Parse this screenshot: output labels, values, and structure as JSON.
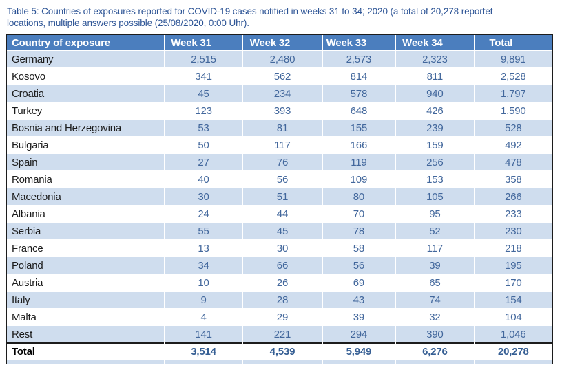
{
  "caption": {
    "line1": "Table 5: Countries of exposures reported for COVID-19 cases notified in weeks 31 to 34; 2020 (a total of 20,278 reportet",
    "line2": "locations, multiple answers possible (25/08/2020, 0:00 Uhr)."
  },
  "table": {
    "columns": [
      "Country of exposure",
      "Week 31",
      "Week 32",
      "Week 33",
      "Week 34",
      "Total"
    ],
    "rows": [
      [
        "Germany",
        "2,515",
        "2,480",
        "2,573",
        "2,323",
        "9,891"
      ],
      [
        "Kosovo",
        "341",
        "562",
        "814",
        "811",
        "2,528"
      ],
      [
        "Croatia",
        "45",
        "234",
        "578",
        "940",
        "1,797"
      ],
      [
        "Turkey",
        "123",
        "393",
        "648",
        "426",
        "1,590"
      ],
      [
        "Bosnia and Herzegovina",
        "53",
        "81",
        "155",
        "239",
        "528"
      ],
      [
        "Bulgaria",
        "50",
        "117",
        "166",
        "159",
        "492"
      ],
      [
        "Spain",
        "27",
        "76",
        "119",
        "256",
        "478"
      ],
      [
        "Romania",
        "40",
        "56",
        "109",
        "153",
        "358"
      ],
      [
        "Macedonia",
        "30",
        "51",
        "80",
        "105",
        "266"
      ],
      [
        "Albania",
        "24",
        "44",
        "70",
        "95",
        "233"
      ],
      [
        "Serbia",
        "55",
        "45",
        "78",
        "52",
        "230"
      ],
      [
        "France",
        "13",
        "30",
        "58",
        "117",
        "218"
      ],
      [
        "Poland",
        "34",
        "66",
        "56",
        "39",
        "195"
      ],
      [
        "Austria",
        "10",
        "26",
        "69",
        "65",
        "170"
      ],
      [
        "Italy",
        "9",
        "28",
        "43",
        "74",
        "154"
      ],
      [
        "Malta",
        "4",
        "29",
        "39",
        "32",
        "104"
      ],
      [
        "Rest",
        "141",
        "221",
        "294",
        "390",
        "1,046"
      ]
    ],
    "total": [
      "Total",
      "3,514",
      "4,539",
      "5,949",
      "6,276",
      "20,278"
    ]
  },
  "colors": {
    "caption_text": "#2E5596",
    "header_bg": "#4B7EBE",
    "header_text": "#FFFFFF",
    "shaded_row": "#CFDDEE",
    "number_text": "#42679C",
    "country_text": "#1C1C1C",
    "total_number_text": "#365F94",
    "border_dark": "#1C1C1C"
  }
}
